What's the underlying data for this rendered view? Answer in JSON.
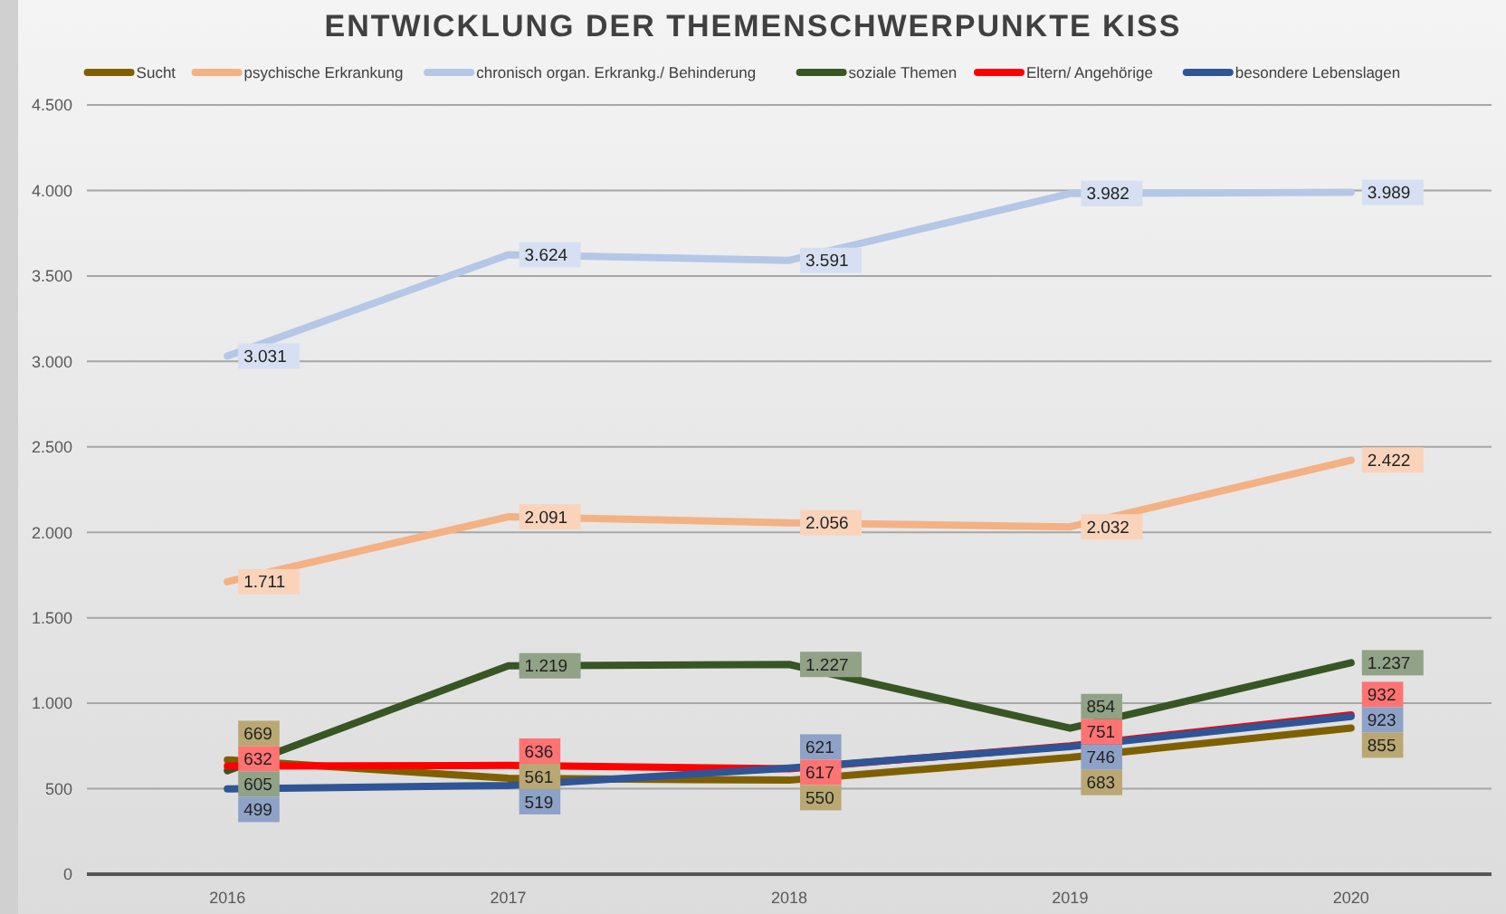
{
  "chart_data": {
    "type": "line",
    "title": "ENTWICKLUNG DER THEMENSCHWERPUNKTE KISS",
    "categories": [
      "2016",
      "2017",
      "2018",
      "2019",
      "2020"
    ],
    "series": [
      {
        "name": "Sucht",
        "color": "#7f6000",
        "values": [
          669,
          561,
          550,
          683,
          855
        ],
        "value_labels": [
          "669",
          "561",
          "550",
          "683",
          "855"
        ]
      },
      {
        "name": "psychische Erkrankung",
        "color": "#f4b183",
        "values": [
          1711,
          2091,
          2056,
          2032,
          2422
        ],
        "value_labels": [
          "1.711",
          "2.091",
          "2.056",
          "2.032",
          "2.422"
        ]
      },
      {
        "name": "chronisch organ. Erkrankg./ Behinderung",
        "color": "#b4c7e7",
        "values": [
          3031,
          3624,
          3591,
          3982,
          3989
        ],
        "value_labels": [
          "3.031",
          "3.624",
          "3.591",
          "3.982",
          "3.989"
        ]
      },
      {
        "name": "soziale Themen",
        "color": "#375623",
        "values": [
          605,
          1219,
          1227,
          854,
          1237
        ],
        "value_labels": [
          "605",
          "1.219",
          "1.227",
          "854",
          "1.237"
        ]
      },
      {
        "name": "Eltern/ Angehörige",
        "color": "#ff0000",
        "values": [
          632,
          636,
          617,
          751,
          932
        ],
        "value_labels": [
          "632",
          "636",
          "617",
          "751",
          "932"
        ]
      },
      {
        "name": "besondere Lebenslagen",
        "color": "#2f5597",
        "values": [
          499,
          519,
          621,
          746,
          923
        ],
        "value_labels": [
          "499",
          "519",
          "621",
          "746",
          "923"
        ]
      }
    ],
    "ylim": [
      0,
      4500
    ],
    "yticks": [
      {
        "value": 0,
        "label": "0"
      },
      {
        "value": 500,
        "label": "500"
      },
      {
        "value": 1000,
        "label": "1.000"
      },
      {
        "value": 1500,
        "label": "1.500"
      },
      {
        "value": 2000,
        "label": "2.000"
      },
      {
        "value": 2500,
        "label": "2.500"
      },
      {
        "value": 3000,
        "label": "3.000"
      },
      {
        "value": 3500,
        "label": "3.500"
      },
      {
        "value": 4000,
        "label": "4.000"
      },
      {
        "value": 4500,
        "label": "4.500"
      }
    ],
    "grid": "y",
    "legend": "top",
    "line_style": "solid"
  }
}
